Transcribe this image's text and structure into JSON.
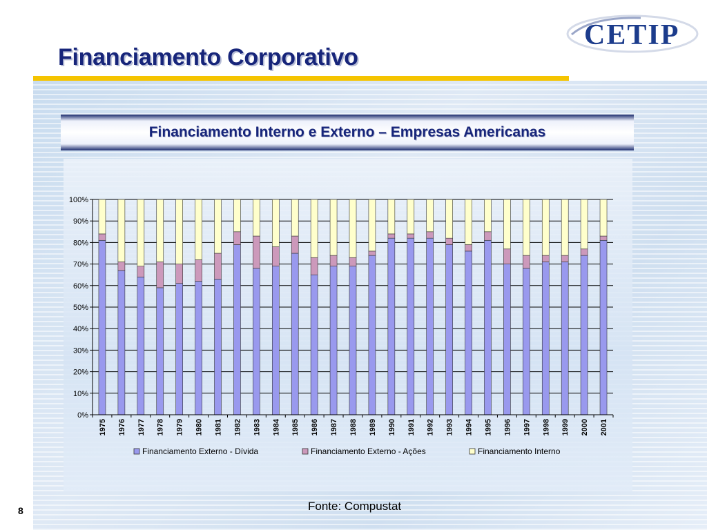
{
  "slide": {
    "title": "Financiamento Corporativo",
    "chart_heading": "Financiamento Interno e Externo – Empresas Americanas",
    "source": "Fonte: Compustat",
    "page_number": "8",
    "logo_text": "CETIP"
  },
  "colors": {
    "title": "#17257a",
    "rule": "#f5c400",
    "debt": "#9999ee",
    "equity": "#cc99bb",
    "internal": "#ffffcc"
  },
  "chart_data": {
    "type": "bar",
    "stacked": true,
    "title": "",
    "xlabel": "",
    "ylabel": "",
    "ylim": [
      0,
      100
    ],
    "y_ticks": [
      "0%",
      "10%",
      "20%",
      "30%",
      "40%",
      "50%",
      "60%",
      "70%",
      "80%",
      "90%",
      "100%"
    ],
    "grid": true,
    "legend_position": "bottom",
    "categories": [
      "1975",
      "1976",
      "1977",
      "1978",
      "1979",
      "1980",
      "1981",
      "1982",
      "1983",
      "1984",
      "1985",
      "1986",
      "1987",
      "1988",
      "1989",
      "1990",
      "1991",
      "1992",
      "1993",
      "1994",
      "1995",
      "1996",
      "1997",
      "1998",
      "1999",
      "2000",
      "2001"
    ],
    "series": [
      {
        "name": "Financiamento Externo -  Dívida",
        "color": "#9999ee",
        "values": [
          81,
          67,
          64,
          59,
          61,
          62,
          63,
          79,
          68,
          69,
          75,
          65,
          69,
          69,
          74,
          82,
          82,
          82,
          79,
          76,
          81,
          70,
          68,
          71,
          71,
          74,
          81
        ]
      },
      {
        "name": "Financiamento Externo - Ações",
        "color": "#cc99bb",
        "values": [
          3,
          4,
          5,
          12,
          9,
          10,
          12,
          6,
          15,
          9,
          8,
          8,
          5,
          4,
          2,
          2,
          2,
          3,
          3,
          3,
          4,
          7,
          6,
          3,
          3,
          3,
          2
        ]
      },
      {
        "name": "Financiamento Interno",
        "color": "#ffffcc",
        "values": [
          16,
          29,
          31,
          29,
          30,
          28,
          25,
          15,
          17,
          22,
          17,
          27,
          26,
          27,
          24,
          16,
          16,
          15,
          18,
          21,
          15,
          23,
          26,
          26,
          26,
          23,
          17
        ]
      }
    ]
  }
}
